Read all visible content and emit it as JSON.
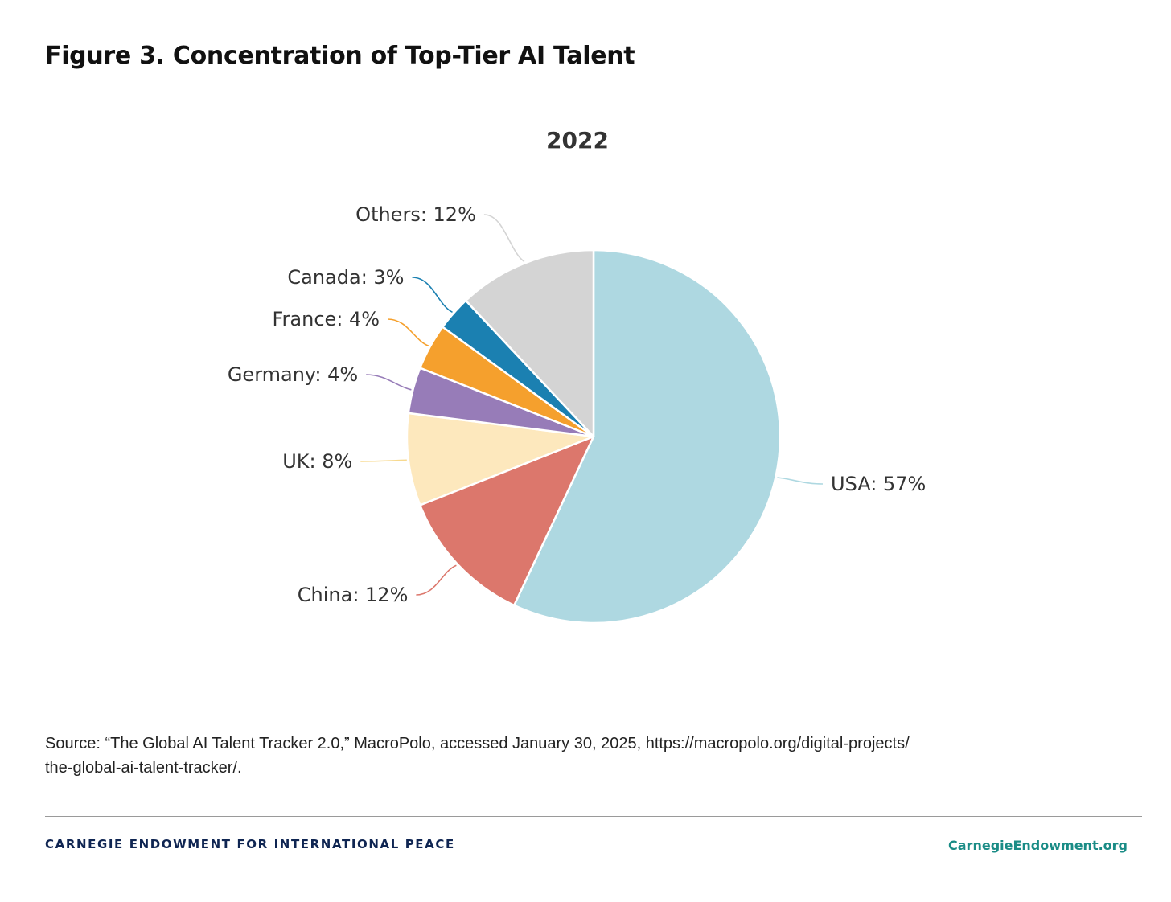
{
  "figure_title": "Figure 3. Concentration of Top-Tier AI Talent",
  "chart_data": {
    "type": "pie",
    "title": "2022",
    "label_format": "{name}: {value}%",
    "slices": [
      {
        "name": "USA",
        "value": 57,
        "color": "#aed8e1"
      },
      {
        "name": "China",
        "value": 12,
        "color": "#dc776c"
      },
      {
        "name": "UK",
        "value": 8,
        "color": "#fde8bd"
      },
      {
        "name": "Germany",
        "value": 4,
        "color": "#977cb8"
      },
      {
        "name": "France",
        "value": 4,
        "color": "#f5a02d"
      },
      {
        "name": "Canada",
        "value": 3,
        "color": "#1b80b1"
      },
      {
        "name": "Others",
        "value": 12,
        "color": "#d4d4d4"
      }
    ]
  },
  "source_lines": [
    "Source: “The Global AI Talent Tracker 2.0,” MacroPolo, accessed January 30, 2025, https://macropolo.org/digital-projects/",
    "the-global-ai-talent-tracker/."
  ],
  "footer": {
    "organization": "CARNEGIE ENDOWMENT FOR INTERNATIONAL PEACE",
    "website": "CarnegieEndowment.org"
  }
}
